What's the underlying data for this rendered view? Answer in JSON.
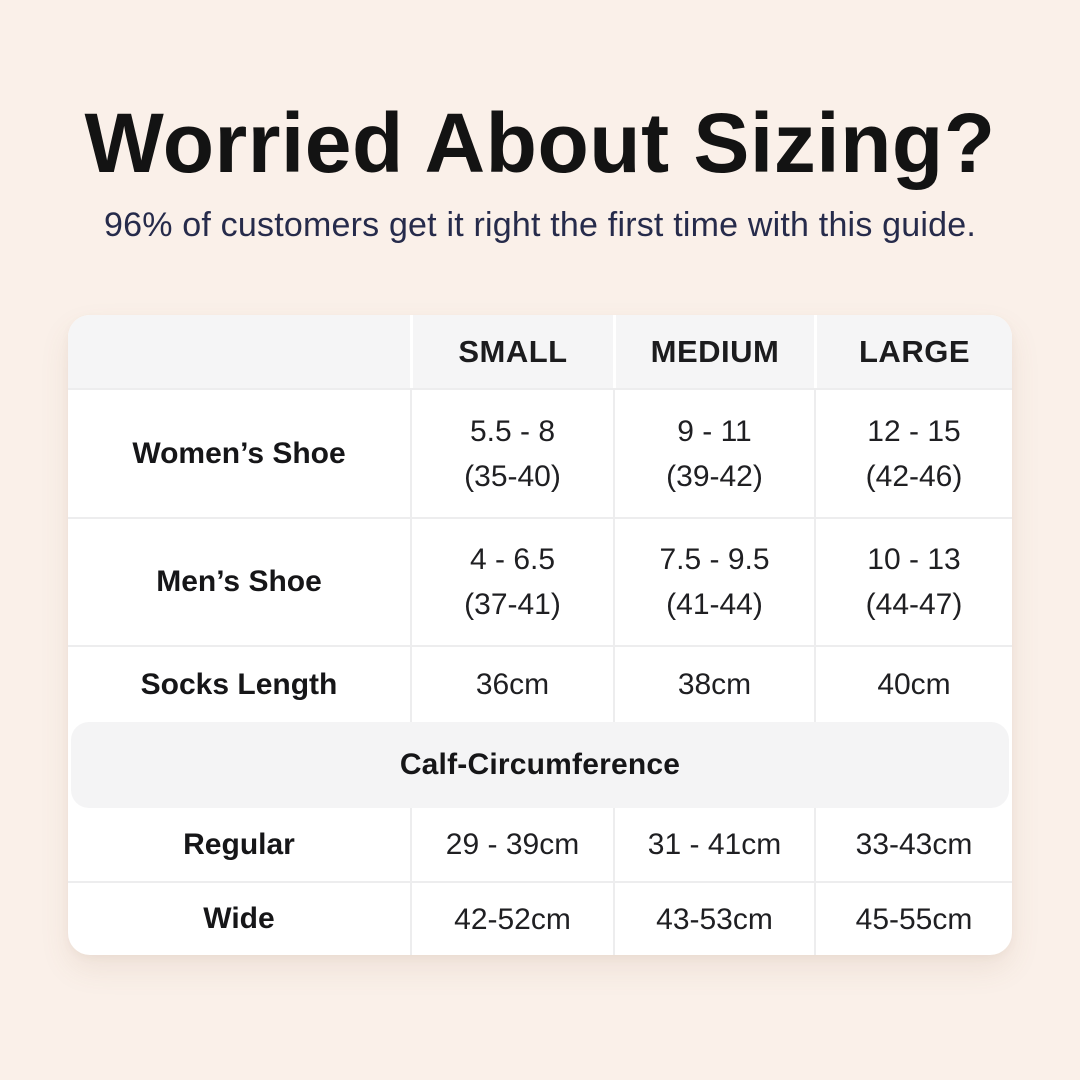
{
  "page": {
    "background_color": "#FAF0E9",
    "title": "Worried About Sizing?",
    "subtitle": "96% of customers get it right the first time with this guide.",
    "title_color": "#131313",
    "subtitle_color": "#262B4B",
    "card_color": "#FFFFFF",
    "band_color": "#F5F5F6"
  },
  "table": {
    "columns": [
      "SMALL",
      "MEDIUM",
      "LARGE"
    ],
    "rows": [
      {
        "label": "Women’s Shoe",
        "cells": [
          [
            "5.5 - 8",
            "(35-40)"
          ],
          [
            "9 - 11",
            "(39-42)"
          ],
          [
            "12 - 15",
            "(42-46)"
          ]
        ]
      },
      {
        "label": "Men’s Shoe",
        "cells": [
          [
            "4 - 6.5",
            "(37-41)"
          ],
          [
            "7.5 - 9.5",
            "(41-44)"
          ],
          [
            "10 - 13",
            "(44-47)"
          ]
        ]
      },
      {
        "label": "Socks Length",
        "cells": [
          [
            "36cm"
          ],
          [
            "38cm"
          ],
          [
            "40cm"
          ]
        ]
      }
    ],
    "section_header": "Calf-Circumference",
    "section_rows": [
      {
        "label": "Regular",
        "cells": [
          "29 - 39cm",
          "31 - 41cm",
          "33-43cm"
        ]
      },
      {
        "label": "Wide",
        "cells": [
          "42-52cm",
          "43-53cm",
          "45-55cm"
        ]
      }
    ]
  },
  "chart_data": {
    "type": "table",
    "title": "Worried About Sizing?",
    "subtitle": "96% of customers get it right the first time with this guide.",
    "columns": [
      "",
      "SMALL",
      "MEDIUM",
      "LARGE"
    ],
    "rows": [
      [
        "Women’s Shoe",
        "5.5 - 8 (35-40)",
        "9 - 11 (39-42)",
        "12 - 15 (42-46)"
      ],
      [
        "Men’s Shoe",
        "4 - 6.5 (37-41)",
        "7.5 - 9.5 (41-44)",
        "10 - 13 (44-47)"
      ],
      [
        "Socks Length",
        "36cm",
        "38cm",
        "40cm"
      ],
      [
        "Calf-Circumference",
        "",
        "",
        ""
      ],
      [
        "Regular",
        "29 - 39cm",
        "31 - 41cm",
        "33-43cm"
      ],
      [
        "Wide",
        "42-52cm",
        "43-53cm",
        "45-55cm"
      ]
    ]
  }
}
